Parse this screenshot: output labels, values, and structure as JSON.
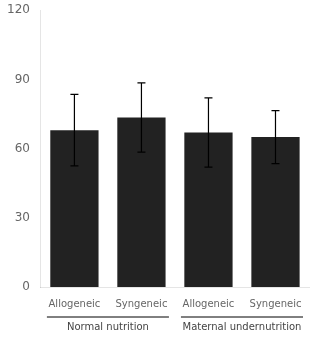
{
  "chart_data": {
    "type": "bar",
    "categories": [
      "Allogeneic",
      "Syngeneic",
      "Allogeneic",
      "Syngeneic"
    ],
    "groups": [
      "Normal nutrition",
      "Normal nutrition",
      "Maternal undernutrition",
      "Maternal undernutrition"
    ],
    "values": [
      68.0,
      73.5,
      67.0,
      65.0
    ],
    "errors": [
      15.5,
      15.0,
      15.0,
      11.5
    ],
    "color": "#222222",
    "ylim": [
      0,
      120
    ],
    "yticks": [
      0,
      30,
      60,
      90,
      120
    ],
    "grid": false
  }
}
